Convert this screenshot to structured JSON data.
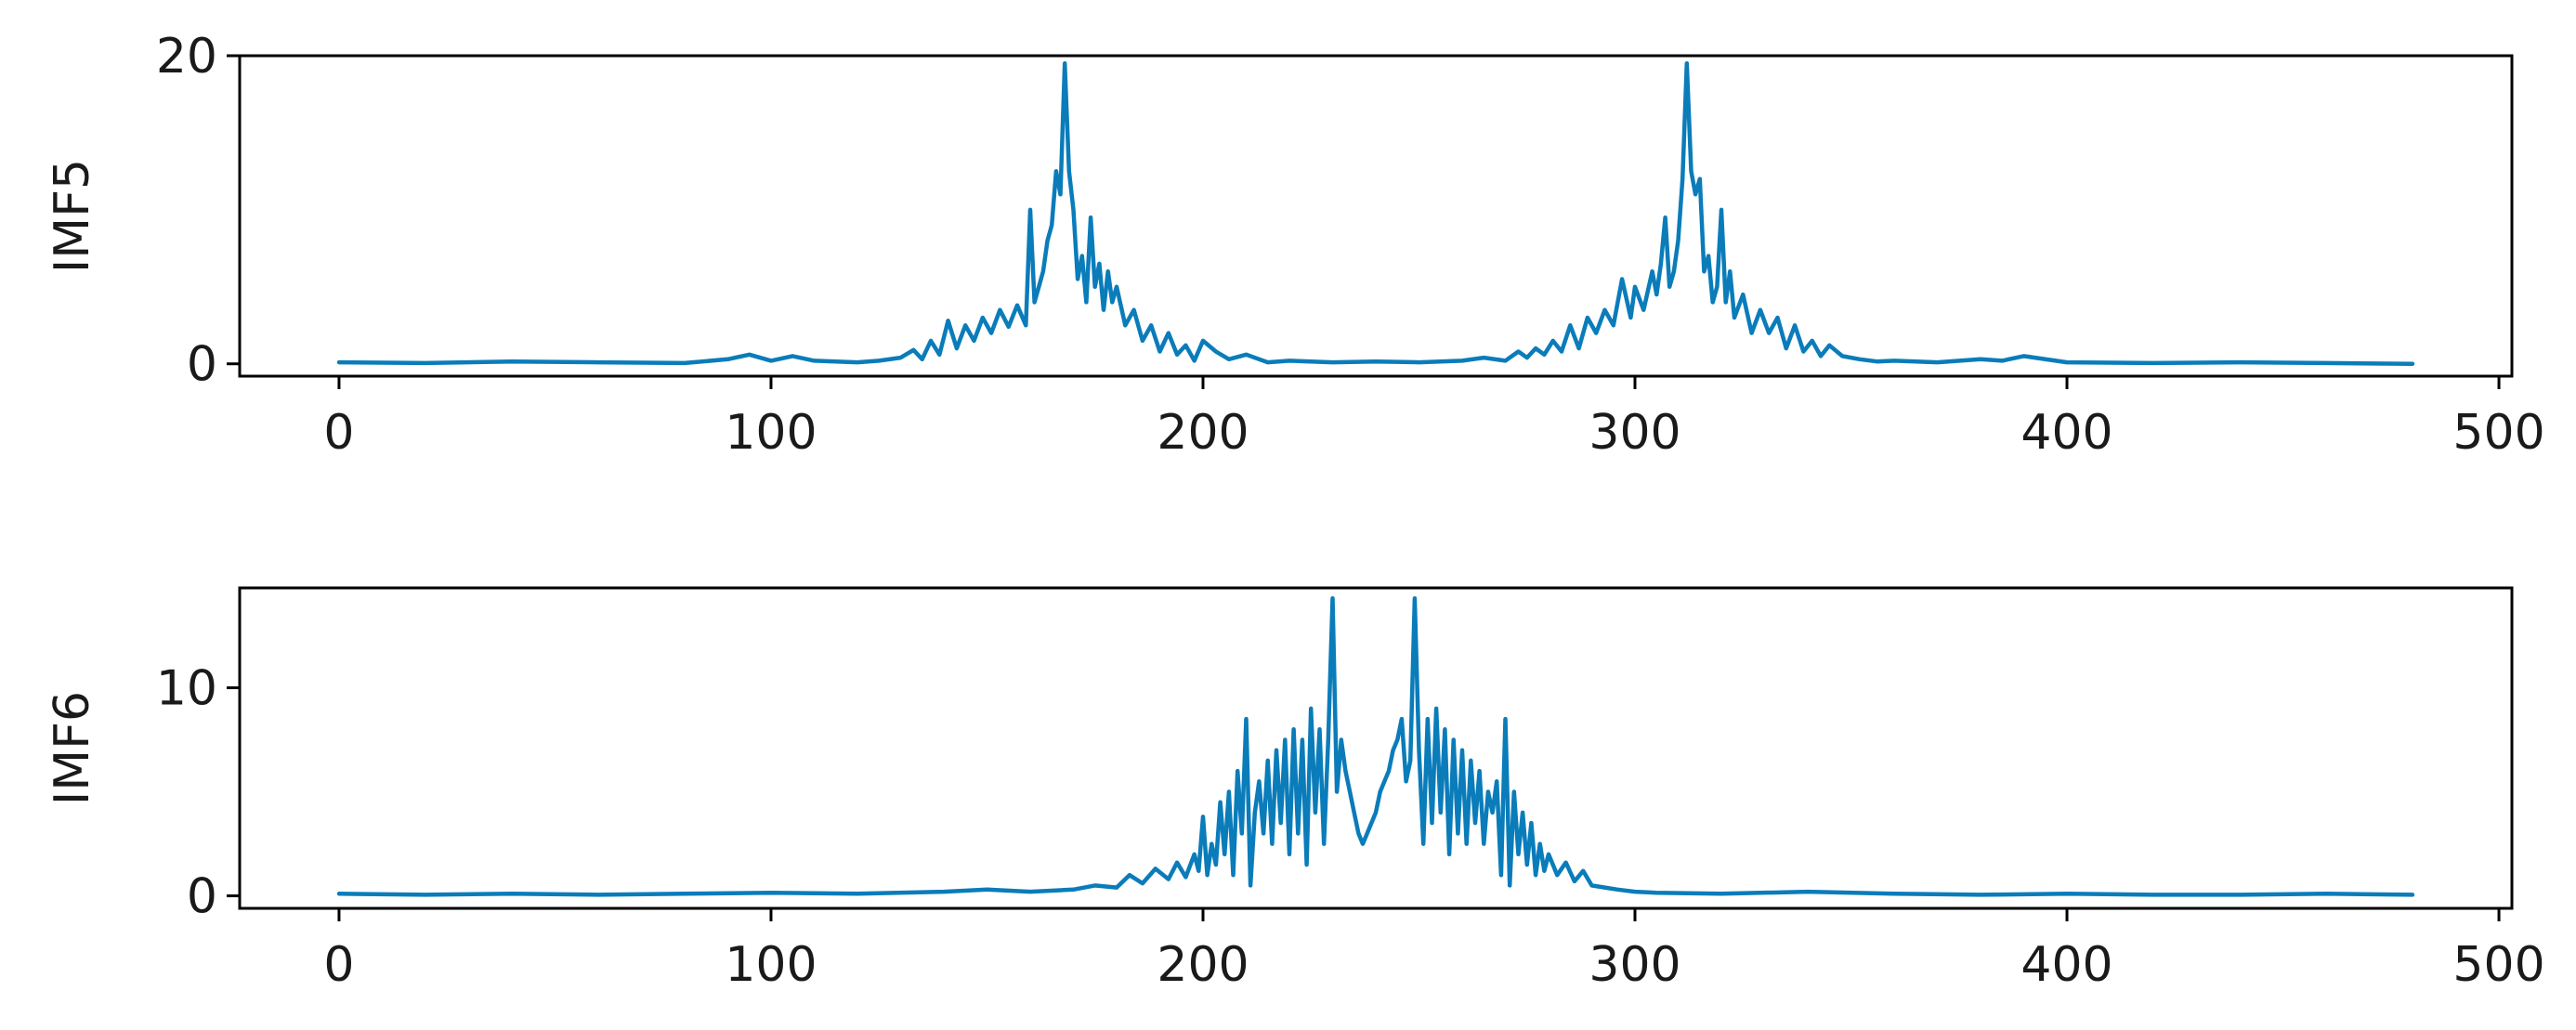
{
  "chart_data": [
    {
      "type": "line",
      "ylabel": "IMF5",
      "xlim": [
        -23,
        503
      ],
      "ylim": [
        -0.8,
        20
      ],
      "xticks": [
        0,
        100,
        200,
        300,
        400,
        500
      ],
      "yticks": [
        0,
        20
      ],
      "tick_labels_x": [
        "0",
        "100",
        "200",
        "300",
        "400",
        "500"
      ],
      "tick_labels_y": [
        "0",
        "20"
      ],
      "color": "#0a7cba",
      "series": [
        {
          "x": [
            0,
            20,
            40,
            60,
            80,
            90,
            95,
            100,
            105,
            110,
            120,
            125,
            130,
            133,
            135,
            137,
            139,
            141,
            143,
            145,
            147,
            149,
            151,
            153,
            155,
            157,
            159,
            160,
            161,
            162,
            163,
            164,
            165,
            166,
            167,
            168,
            169,
            170,
            171,
            172,
            173,
            174,
            175,
            176,
            177,
            178,
            179,
            180,
            182,
            184,
            186,
            188,
            190,
            192,
            194,
            196,
            198,
            200,
            203,
            206,
            210,
            215,
            220,
            230,
            240,
            250,
            260,
            265,
            270,
            273,
            275,
            277,
            279,
            281,
            283,
            285,
            287,
            289,
            291,
            293,
            295,
            297,
            299,
            300,
            302,
            304,
            305,
            306,
            307,
            308,
            309,
            310,
            311,
            312,
            313,
            314,
            315,
            316,
            317,
            318,
            319,
            320,
            321,
            322,
            323,
            325,
            327,
            329,
            331,
            333,
            335,
            337,
            339,
            341,
            343,
            345,
            348,
            352,
            356,
            360,
            370,
            380,
            385,
            390,
            400,
            420,
            440,
            460,
            480
          ],
          "y": [
            0.1,
            0.05,
            0.15,
            0.1,
            0.05,
            0.3,
            0.6,
            0.2,
            0.5,
            0.2,
            0.1,
            0.2,
            0.4,
            0.9,
            0.3,
            1.5,
            0.6,
            2.8,
            1.0,
            2.5,
            1.5,
            3.0,
            2.0,
            3.5,
            2.4,
            3.8,
            2.5,
            10.0,
            4.0,
            5.0,
            6.0,
            8.0,
            9.0,
            12.5,
            11.0,
            19.5,
            12.5,
            10.0,
            5.5,
            7.0,
            4.0,
            9.5,
            5.0,
            6.5,
            3.5,
            6.0,
            4.0,
            5.0,
            2.5,
            3.5,
            1.5,
            2.5,
            0.8,
            2.0,
            0.6,
            1.2,
            0.2,
            1.5,
            0.8,
            0.3,
            0.6,
            0.1,
            0.2,
            0.1,
            0.15,
            0.1,
            0.2,
            0.4,
            0.2,
            0.8,
            0.4,
            1.0,
            0.6,
            1.5,
            0.8,
            2.5,
            1.0,
            3.0,
            2.0,
            3.5,
            2.5,
            5.5,
            3.0,
            5.0,
            3.5,
            6.0,
            4.5,
            6.5,
            9.5,
            5.0,
            6.0,
            8.0,
            12.0,
            19.5,
            12.5,
            11.0,
            12.0,
            6.0,
            7.0,
            4.0,
            5.0,
            10.0,
            4.0,
            6.0,
            3.0,
            4.5,
            2.0,
            3.5,
            2.0,
            3.0,
            1.0,
            2.5,
            0.8,
            1.5,
            0.5,
            1.2,
            0.5,
            0.3,
            0.15,
            0.2,
            0.1,
            0.3,
            0.2,
            0.5,
            0.1,
            0.05,
            0.1,
            0.05,
            0.0
          ]
        }
      ]
    },
    {
      "type": "line",
      "ylabel": "IMF6",
      "xlim": [
        -23,
        503
      ],
      "ylim": [
        -0.6,
        14.8
      ],
      "xticks": [
        0,
        100,
        200,
        300,
        400,
        500
      ],
      "yticks": [
        0,
        10
      ],
      "tick_labels_x": [
        "0",
        "100",
        "200",
        "300",
        "400",
        "500"
      ],
      "tick_labels_y": [
        "0",
        "10"
      ],
      "color": "#0a7cba",
      "series": [
        {
          "x": [
            0,
            20,
            40,
            60,
            80,
            100,
            120,
            140,
            150,
            160,
            170,
            175,
            180,
            183,
            186,
            189,
            192,
            194,
            196,
            198,
            199,
            200,
            201,
            202,
            203,
            204,
            205,
            206,
            207,
            208,
            209,
            210,
            211,
            212,
            213,
            214,
            215,
            216,
            217,
            218,
            219,
            220,
            221,
            222,
            223,
            224,
            225,
            226,
            227,
            228,
            229,
            230,
            231,
            232,
            233,
            234,
            235,
            236,
            237,
            238,
            239,
            240,
            241,
            242,
            243,
            244,
            245,
            246,
            247,
            248,
            249,
            250,
            251,
            252,
            253,
            254,
            255,
            256,
            257,
            258,
            259,
            260,
            261,
            262,
            263,
            264,
            265,
            266,
            267,
            268,
            269,
            270,
            271,
            272,
            273,
            274,
            275,
            276,
            277,
            278,
            279,
            280,
            282,
            284,
            286,
            288,
            290,
            293,
            296,
            300,
            305,
            320,
            340,
            360,
            380,
            400,
            420,
            440,
            460,
            480
          ],
          "y": [
            0.1,
            0.05,
            0.1,
            0.05,
            0.1,
            0.15,
            0.1,
            0.2,
            0.3,
            0.2,
            0.3,
            0.5,
            0.4,
            1.0,
            0.6,
            1.3,
            0.8,
            1.6,
            0.9,
            2.0,
            1.2,
            3.8,
            1.0,
            2.5,
            1.5,
            4.5,
            2.0,
            5.0,
            1.0,
            6.0,
            3.0,
            8.5,
            0.5,
            4.0,
            5.5,
            3.0,
            6.5,
            2.5,
            7.0,
            3.5,
            7.5,
            2.0,
            8.0,
            3.0,
            7.5,
            1.5,
            9.0,
            4.0,
            8.0,
            2.5,
            7.5,
            14.3,
            5.0,
            7.5,
            6.0,
            5.0,
            4.0,
            3.0,
            2.5,
            3.0,
            3.5,
            4.0,
            5.0,
            5.5,
            6.0,
            7.0,
            7.5,
            8.5,
            5.5,
            6.5,
            14.3,
            7.0,
            2.5,
            8.5,
            3.5,
            9.0,
            4.0,
            8.0,
            2.0,
            7.5,
            3.0,
            7.0,
            2.5,
            6.5,
            3.5,
            6.0,
            2.5,
            5.0,
            4.0,
            5.5,
            1.0,
            8.5,
            0.5,
            5.0,
            2.0,
            4.0,
            1.5,
            3.5,
            1.0,
            2.5,
            1.2,
            2.0,
            1.0,
            1.6,
            0.7,
            1.2,
            0.5,
            0.4,
            0.3,
            0.2,
            0.15,
            0.1,
            0.2,
            0.1,
            0.05,
            0.1,
            0.05,
            0.05,
            0.1,
            0.05
          ]
        }
      ]
    }
  ]
}
